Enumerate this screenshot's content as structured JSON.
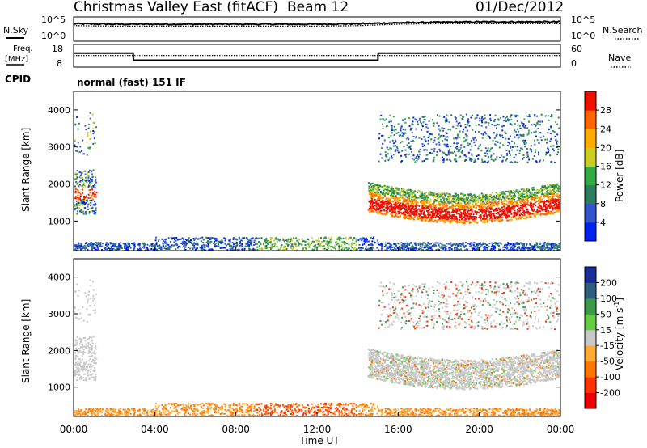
{
  "header": {
    "title": "Christmas Valley East (fitACF)",
    "beam": "Beam 12",
    "date": "01/Dec/2012"
  },
  "noise_panel": {
    "left_label": "N.Sky",
    "right_label": "N.Search",
    "y_ticks": [
      "10^5",
      "10^0"
    ]
  },
  "freq_panel": {
    "left_label_line1": "Freq.",
    "left_label_line2": "[MHz]",
    "right_label": "Nave",
    "left_ticks": [
      "18",
      "8"
    ],
    "right_ticks": [
      "60",
      "0"
    ]
  },
  "cpid": {
    "label": "CPID",
    "mode": "normal (fast) 151 IF"
  },
  "chart_data": [
    {
      "type": "line",
      "title": "N.Sky / N.Search",
      "x": [
        "00:00",
        "02:00",
        "04:00",
        "06:00",
        "08:00",
        "10:00",
        "12:00",
        "14:00",
        "16:00",
        "18:00",
        "20:00",
        "22:00",
        "24:00"
      ],
      "series": [
        {
          "name": "N.Sky",
          "values": [
            3.6,
            3.5,
            3.5,
            3.5,
            3.5,
            3.5,
            3.5,
            3.6,
            3.8,
            3.9,
            4.0,
            4.0,
            4.0
          ]
        },
        {
          "name": "N.Search",
          "values": [
            3.2,
            3.1,
            3.1,
            3.1,
            3.1,
            3.1,
            3.1,
            3.2,
            3.5,
            3.6,
            3.6,
            3.6,
            3.6
          ]
        }
      ]
    },
    {
      "type": "line",
      "title": "Freq / Nave",
      "x": [
        "00:00",
        "02:56",
        "02:57",
        "15:00",
        "15:01",
        "24:00"
      ],
      "series": [
        {
          "name": "Freq [MHz]",
          "values": [
            14.5,
            14.5,
            10.5,
            10.5,
            14.5,
            14.5
          ]
        },
        {
          "name": "Nave",
          "values": [
            33,
            33,
            33,
            33,
            33,
            33
          ]
        }
      ]
    },
    {
      "type": "heatmap",
      "title": "Power [dB]",
      "ylabel": "Slant Range [km]",
      "ylim": [
        200,
        4500
      ],
      "y_ticks": [
        "1000",
        "2000",
        "3000",
        "4000"
      ],
      "colorbar_label": "Power [dB]",
      "colorbar_ticks": [
        "4",
        "8",
        "12",
        "16",
        "20",
        "24",
        "28"
      ],
      "colorbar_colors": [
        "#0022ee",
        "#3355cc",
        "#2e7d5e",
        "#33aa44",
        "#cccc22",
        "#ffaa00",
        "#ff6600",
        "#ee1100"
      ]
    },
    {
      "type": "heatmap",
      "title": "Velocity [m s-1]",
      "ylabel": "Slant Range [km]",
      "ylim": [
        200,
        4500
      ],
      "y_ticks": [
        "1000",
        "2000",
        "3000",
        "4000"
      ],
      "colorbar_label": "Velocity [m s",
      "colorbar_unit_sup": "-1",
      "colorbar_unit_end": "]",
      "colorbar_ticks": [
        "200",
        "100",
        "50",
        "15",
        "-15",
        "-50",
        "-100",
        "-200"
      ],
      "colorbar_colors": [
        "#1a2e9a",
        "#2e5e7e",
        "#3a9a4a",
        "#66cc44",
        "#c8c8c8",
        "#ffaa33",
        "#ff7700",
        "#ff3300",
        "#ee0000"
      ]
    }
  ],
  "x_axis": {
    "ticks": [
      "00:00",
      "04:00",
      "08:00",
      "12:00",
      "16:00",
      "20:00",
      "00:00"
    ],
    "label": "Time UT"
  },
  "colors": {
    "power_scale": [
      "#0022ee",
      "#3355cc",
      "#2e7d5e",
      "#33aa44",
      "#cccc22",
      "#ffaa00",
      "#ff6600",
      "#ee1100"
    ],
    "velocity_scale": [
      "#1a2e9a",
      "#2e5e7e",
      "#3a9a4a",
      "#66cc44",
      "#c8c8c8",
      "#ffaa33",
      "#ff7700",
      "#ff3300",
      "#ee0000"
    ],
    "ground_scatter": "#c8c8c8"
  }
}
